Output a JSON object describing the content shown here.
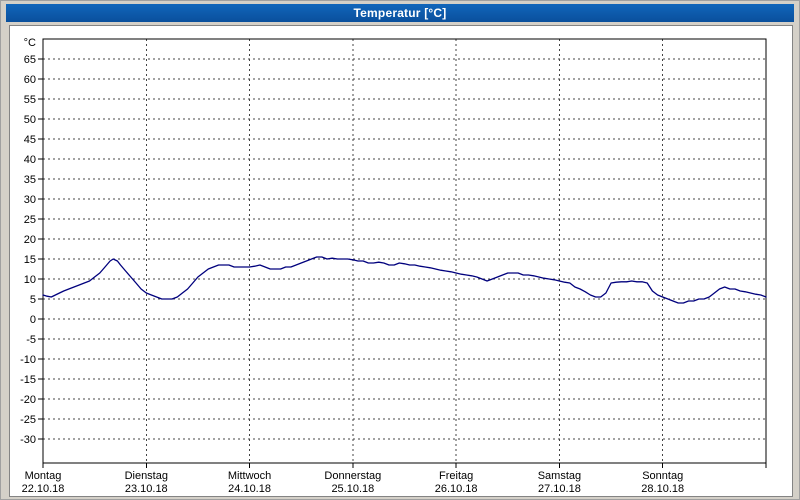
{
  "window": {
    "title": "Temperatur [°C]"
  },
  "chart_data": {
    "type": "line",
    "title": "Temperatur [°C]",
    "y_unit_label": "°C",
    "ylim": [
      -36,
      70
    ],
    "y_ticks": [
      65,
      60,
      55,
      50,
      45,
      40,
      35,
      30,
      25,
      20,
      15,
      10,
      5,
      0,
      -5,
      -10,
      -15,
      -20,
      -25,
      -30
    ],
    "x_range_days": [
      0,
      7
    ],
    "grid": "dashed",
    "x_ticks": [
      {
        "day": "Montag",
        "date": "22.10.18"
      },
      {
        "day": "Dienstag",
        "date": "23.10.18"
      },
      {
        "day": "Mittwoch",
        "date": "24.10.18"
      },
      {
        "day": "Donnerstag",
        "date": "25.10.18"
      },
      {
        "day": "Freitag",
        "date": "26.10.18"
      },
      {
        "day": "Samstag",
        "date": "27.10.18"
      },
      {
        "day": "Sonntag",
        "date": "28.10.18"
      }
    ],
    "series": [
      {
        "name": "Temperatur",
        "color": "#00007d",
        "points": [
          [
            0,
            6
          ],
          [
            0.04,
            5.7
          ],
          [
            0.08,
            5.5
          ],
          [
            0.12,
            6
          ],
          [
            0.16,
            6.5
          ],
          [
            0.2,
            7
          ],
          [
            0.25,
            7.5
          ],
          [
            0.3,
            8
          ],
          [
            0.35,
            8.5
          ],
          [
            0.4,
            9
          ],
          [
            0.45,
            9.5
          ],
          [
            0.5,
            10.5
          ],
          [
            0.55,
            11.5
          ],
          [
            0.6,
            13
          ],
          [
            0.65,
            14.5
          ],
          [
            0.68,
            15
          ],
          [
            0.72,
            14.5
          ],
          [
            0.75,
            13.5
          ],
          [
            0.8,
            12
          ],
          [
            0.85,
            10.5
          ],
          [
            0.9,
            9
          ],
          [
            0.95,
            7.5
          ],
          [
            1,
            6.5
          ],
          [
            1.05,
            6
          ],
          [
            1.1,
            5.5
          ],
          [
            1.15,
            5
          ],
          [
            1.2,
            5
          ],
          [
            1.25,
            5
          ],
          [
            1.3,
            5.5
          ],
          [
            1.35,
            6.5
          ],
          [
            1.4,
            7.5
          ],
          [
            1.45,
            9
          ],
          [
            1.5,
            10.5
          ],
          [
            1.55,
            11.5
          ],
          [
            1.6,
            12.5
          ],
          [
            1.65,
            13
          ],
          [
            1.7,
            13.5
          ],
          [
            1.75,
            13.5
          ],
          [
            1.8,
            13.5
          ],
          [
            1.85,
            13
          ],
          [
            1.9,
            13
          ],
          [
            1.95,
            13
          ],
          [
            2,
            13
          ],
          [
            2.05,
            13.2
          ],
          [
            2.1,
            13.5
          ],
          [
            2.15,
            13
          ],
          [
            2.2,
            12.5
          ],
          [
            2.25,
            12.5
          ],
          [
            2.3,
            12.5
          ],
          [
            2.35,
            13
          ],
          [
            2.4,
            13
          ],
          [
            2.45,
            13.5
          ],
          [
            2.5,
            14
          ],
          [
            2.55,
            14.5
          ],
          [
            2.6,
            15
          ],
          [
            2.65,
            15.5
          ],
          [
            2.7,
            15.5
          ],
          [
            2.75,
            15
          ],
          [
            2.8,
            15.2
          ],
          [
            2.85,
            15
          ],
          [
            2.9,
            15
          ],
          [
            2.95,
            15
          ],
          [
            3,
            14.8
          ],
          [
            3.05,
            14.5
          ],
          [
            3.1,
            14.5
          ],
          [
            3.15,
            14
          ],
          [
            3.2,
            14
          ],
          [
            3.25,
            14.2
          ],
          [
            3.3,
            14
          ],
          [
            3.35,
            13.5
          ],
          [
            3.4,
            13.5
          ],
          [
            3.45,
            14
          ],
          [
            3.5,
            13.8
          ],
          [
            3.55,
            13.5
          ],
          [
            3.6,
            13.5
          ],
          [
            3.65,
            13.2
          ],
          [
            3.7,
            13
          ],
          [
            3.75,
            12.8
          ],
          [
            3.8,
            12.5
          ],
          [
            3.85,
            12.2
          ],
          [
            3.9,
            12
          ],
          [
            3.95,
            11.8
          ],
          [
            4,
            11.5
          ],
          [
            4.05,
            11.2
          ],
          [
            4.1,
            11
          ],
          [
            4.15,
            10.8
          ],
          [
            4.2,
            10.5
          ],
          [
            4.25,
            10
          ],
          [
            4.3,
            9.5
          ],
          [
            4.35,
            10
          ],
          [
            4.4,
            10.5
          ],
          [
            4.45,
            11
          ],
          [
            4.5,
            11.5
          ],
          [
            4.55,
            11.5
          ],
          [
            4.6,
            11.5
          ],
          [
            4.65,
            11
          ],
          [
            4.7,
            11
          ],
          [
            4.75,
            10.8
          ],
          [
            4.8,
            10.5
          ],
          [
            4.85,
            10.2
          ],
          [
            4.9,
            10
          ],
          [
            4.95,
            9.8
          ],
          [
            5,
            9.5
          ],
          [
            5.05,
            9.2
          ],
          [
            5.1,
            9
          ],
          [
            5.15,
            8
          ],
          [
            5.2,
            7.5
          ],
          [
            5.25,
            6.8
          ],
          [
            5.3,
            6
          ],
          [
            5.35,
            5.5
          ],
          [
            5.4,
            5.5
          ],
          [
            5.45,
            6.5
          ],
          [
            5.5,
            9
          ],
          [
            5.55,
            9.2
          ],
          [
            5.6,
            9.3
          ],
          [
            5.65,
            9.3
          ],
          [
            5.7,
            9.5
          ],
          [
            5.75,
            9.3
          ],
          [
            5.8,
            9.3
          ],
          [
            5.85,
            9
          ],
          [
            5.9,
            7
          ],
          [
            5.95,
            6
          ],
          [
            6,
            5.5
          ],
          [
            6.05,
            5
          ],
          [
            6.1,
            4.5
          ],
          [
            6.15,
            4
          ],
          [
            6.2,
            4
          ],
          [
            6.25,
            4.5
          ],
          [
            6.3,
            4.5
          ],
          [
            6.35,
            5
          ],
          [
            6.4,
            5
          ],
          [
            6.45,
            5.5
          ],
          [
            6.5,
            6.5
          ],
          [
            6.55,
            7.5
          ],
          [
            6.6,
            8
          ],
          [
            6.65,
            7.5
          ],
          [
            6.7,
            7.5
          ],
          [
            6.75,
            7
          ],
          [
            6.8,
            6.8
          ],
          [
            6.85,
            6.5
          ],
          [
            6.9,
            6.2
          ],
          [
            6.95,
            6
          ],
          [
            7,
            5.5
          ]
        ]
      }
    ]
  }
}
